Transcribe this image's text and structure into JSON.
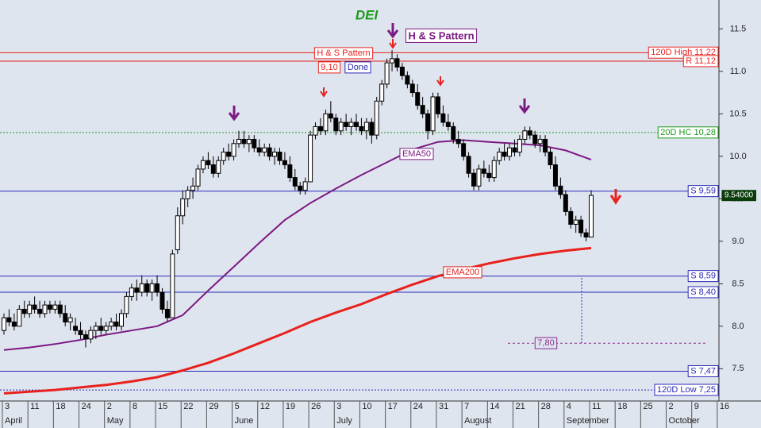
{
  "chart_data": {
    "type": "candlestick",
    "title": "DEI",
    "ylim": [
      7.12,
      11.84
    ],
    "yticks": [
      7.5,
      {
        "value": 8,
        "label": "8.0"
      },
      8.5,
      {
        "value": 9,
        "label": "9.0"
      },
      9.5,
      {
        "value": 10,
        "label": "10.0"
      },
      10.5,
      {
        "value": 11,
        "label": "11.0"
      },
      11.5
    ],
    "xtick_labels": [
      "3",
      "11",
      "18",
      "24",
      "2",
      "8",
      "15",
      "22",
      "29",
      "5",
      "12",
      "19",
      "26",
      "3",
      "10",
      "17",
      "24",
      "31",
      "7",
      "14",
      "21",
      "28",
      "4",
      "11",
      "18",
      "25",
      "2",
      "9",
      "16"
    ],
    "months": [
      "April",
      "May",
      "June",
      "July",
      "August",
      "September",
      "October"
    ],
    "candles": [
      [
        7.95,
        8.15,
        7.9,
        8.1
      ],
      [
        8.1,
        8.2,
        8.0,
        8.05
      ],
      [
        8.05,
        8.15,
        7.95,
        8.0
      ],
      [
        8.0,
        8.25,
        8.0,
        8.2
      ],
      [
        8.2,
        8.3,
        8.1,
        8.15
      ],
      [
        8.15,
        8.3,
        8.1,
        8.25
      ],
      [
        8.25,
        8.35,
        8.15,
        8.2
      ],
      [
        8.2,
        8.3,
        8.1,
        8.15
      ],
      [
        8.15,
        8.3,
        8.1,
        8.25
      ],
      [
        8.25,
        8.3,
        8.15,
        8.2
      ],
      [
        8.2,
        8.3,
        8.15,
        8.25
      ],
      [
        8.25,
        8.3,
        8.1,
        8.15
      ],
      [
        8.15,
        8.25,
        8.0,
        8.05
      ],
      [
        8.05,
        8.15,
        7.95,
        8.1
      ],
      [
        8.0,
        8.1,
        7.9,
        7.95
      ],
      [
        7.95,
        8.05,
        7.85,
        7.9
      ],
      [
        7.9,
        7.95,
        7.75,
        7.85
      ],
      [
        7.85,
        8.0,
        7.8,
        7.95
      ],
      [
        7.95,
        8.05,
        7.85,
        8.0
      ],
      [
        8.0,
        8.1,
        7.9,
        7.95
      ],
      [
        7.95,
        8.05,
        7.9,
        8.0
      ],
      [
        8.0,
        8.1,
        7.95,
        8.05
      ],
      [
        8.05,
        8.15,
        7.95,
        8.0
      ],
      [
        8.0,
        8.2,
        7.95,
        8.15
      ],
      [
        8.15,
        8.4,
        8.1,
        8.35
      ],
      [
        8.35,
        8.5,
        8.3,
        8.45
      ],
      [
        8.45,
        8.55,
        8.3,
        8.4
      ],
      [
        8.4,
        8.6,
        8.35,
        8.5
      ],
      [
        8.5,
        8.55,
        8.35,
        8.4
      ],
      [
        8.4,
        8.55,
        8.3,
        8.5
      ],
      [
        8.5,
        8.6,
        8.35,
        8.4
      ],
      [
        8.4,
        8.45,
        8.15,
        8.2
      ],
      [
        8.2,
        8.3,
        8.05,
        8.1
      ],
      [
        8.1,
        8.9,
        8.1,
        8.85
      ],
      [
        8.9,
        9.4,
        8.85,
        9.3
      ],
      [
        9.3,
        9.6,
        9.2,
        9.5
      ],
      [
        9.5,
        9.65,
        9.4,
        9.6
      ],
      [
        9.6,
        9.75,
        9.5,
        9.65
      ],
      [
        9.65,
        9.9,
        9.6,
        9.85
      ],
      [
        9.85,
        10.0,
        9.8,
        9.95
      ],
      [
        9.95,
        10.05,
        9.85,
        9.9
      ],
      [
        9.9,
        10.0,
        9.75,
        9.8
      ],
      [
        9.8,
        10.0,
        9.75,
        9.95
      ],
      [
        9.95,
        10.1,
        9.9,
        10.05
      ],
      [
        10.05,
        10.15,
        9.95,
        10.0
      ],
      [
        10.0,
        10.2,
        9.95,
        10.15
      ],
      [
        10.15,
        10.3,
        10.1,
        10.2
      ],
      [
        10.2,
        10.3,
        10.1,
        10.15
      ],
      [
        10.15,
        10.25,
        10.05,
        10.2
      ],
      [
        10.2,
        10.25,
        10.05,
        10.1
      ],
      [
        10.1,
        10.2,
        10.0,
        10.05
      ],
      [
        10.05,
        10.15,
        10.0,
        10.1
      ],
      [
        10.1,
        10.15,
        9.95,
        10.0
      ],
      [
        10.0,
        10.1,
        9.9,
        10.05
      ],
      [
        10.05,
        10.1,
        9.9,
        9.95
      ],
      [
        9.95,
        10.05,
        9.85,
        9.9
      ],
      [
        9.9,
        10.0,
        9.7,
        9.75
      ],
      [
        9.75,
        9.85,
        9.6,
        9.65
      ],
      [
        9.65,
        9.7,
        9.55,
        9.6
      ],
      [
        9.6,
        9.75,
        9.55,
        9.7
      ],
      [
        9.7,
        10.3,
        9.7,
        10.25
      ],
      [
        10.25,
        10.4,
        10.2,
        10.35
      ],
      [
        10.35,
        10.45,
        10.25,
        10.3
      ],
      [
        10.3,
        10.55,
        10.25,
        10.5
      ],
      [
        10.5,
        10.65,
        10.4,
        10.45
      ],
      [
        10.45,
        10.5,
        10.25,
        10.3
      ],
      [
        10.3,
        10.45,
        10.25,
        10.4
      ],
      [
        10.4,
        10.5,
        10.3,
        10.35
      ],
      [
        10.35,
        10.45,
        10.25,
        10.4
      ],
      [
        10.4,
        10.5,
        10.3,
        10.35
      ],
      [
        10.35,
        10.45,
        10.25,
        10.3
      ],
      [
        10.3,
        10.45,
        10.2,
        10.4
      ],
      [
        10.4,
        10.45,
        10.15,
        10.25
      ],
      [
        10.25,
        10.7,
        10.2,
        10.65
      ],
      [
        10.65,
        10.9,
        10.6,
        10.85
      ],
      [
        10.85,
        11.15,
        10.8,
        11.1
      ],
      [
        11.1,
        11.25,
        11.0,
        11.15
      ],
      [
        11.15,
        11.2,
        11.0,
        11.05
      ],
      [
        11.05,
        11.1,
        10.9,
        10.95
      ],
      [
        10.95,
        11.0,
        10.8,
        10.85
      ],
      [
        10.85,
        10.9,
        10.7,
        10.75
      ],
      [
        10.75,
        10.85,
        10.55,
        10.6
      ],
      [
        10.6,
        10.7,
        10.45,
        10.5
      ],
      [
        10.5,
        10.55,
        10.2,
        10.3
      ],
      [
        10.3,
        10.75,
        10.25,
        10.7
      ],
      [
        10.7,
        10.75,
        10.45,
        10.5
      ],
      [
        10.5,
        10.6,
        10.35,
        10.4
      ],
      [
        10.4,
        10.5,
        10.3,
        10.35
      ],
      [
        10.35,
        10.4,
        10.15,
        10.2
      ],
      [
        10.2,
        10.3,
        10.1,
        10.15
      ],
      [
        10.15,
        10.2,
        9.95,
        10.0
      ],
      [
        10.0,
        10.05,
        9.75,
        9.8
      ],
      [
        9.8,
        9.85,
        9.6,
        9.65
      ],
      [
        9.65,
        9.9,
        9.6,
        9.85
      ],
      [
        9.85,
        9.95,
        9.75,
        9.8
      ],
      [
        9.8,
        9.9,
        9.7,
        9.75
      ],
      [
        9.75,
        10.0,
        9.7,
        9.95
      ],
      [
        9.95,
        10.1,
        9.9,
        10.05
      ],
      [
        10.05,
        10.15,
        9.95,
        10.0
      ],
      [
        10.0,
        10.15,
        9.95,
        10.1
      ],
      [
        10.1,
        10.2,
        10.0,
        10.05
      ],
      [
        10.05,
        10.25,
        10.0,
        10.2
      ],
      [
        10.2,
        10.35,
        10.15,
        10.3
      ],
      [
        10.3,
        10.35,
        10.2,
        10.25
      ],
      [
        10.25,
        10.3,
        10.1,
        10.15
      ],
      [
        10.15,
        10.25,
        10.05,
        10.2
      ],
      [
        10.2,
        10.25,
        10.0,
        10.05
      ],
      [
        10.05,
        10.1,
        9.85,
        9.9
      ],
      [
        9.9,
        10.0,
        9.6,
        9.65
      ],
      [
        9.65,
        9.75,
        9.5,
        9.55
      ],
      [
        9.55,
        9.6,
        9.3,
        9.35
      ],
      [
        9.35,
        9.4,
        9.15,
        9.2
      ],
      [
        9.2,
        9.3,
        9.1,
        9.25
      ],
      [
        9.25,
        9.3,
        9.05,
        9.1
      ],
      [
        9.1,
        9.15,
        9.0,
        9.05
      ],
      [
        9.05,
        9.6,
        9.05,
        9.54
      ]
    ],
    "series": [
      {
        "name": "EMA200",
        "color": "#e8211c",
        "values": [
          7.21,
          7.23,
          7.25,
          7.28,
          7.31,
          7.35,
          7.4,
          7.48,
          7.57,
          7.68,
          7.8,
          7.92,
          8.05,
          8.16,
          8.26,
          8.38,
          8.49,
          8.59,
          8.67,
          8.74,
          8.8,
          8.85,
          8.89,
          8.92
        ]
      },
      {
        "name": "EMA50",
        "color": "#7b1a82",
        "values": [
          7.72,
          7.75,
          7.79,
          7.84,
          7.9,
          7.95,
          8.0,
          8.13,
          8.42,
          8.7,
          8.98,
          9.25,
          9.45,
          9.62,
          9.78,
          9.93,
          10.08,
          10.17,
          10.19,
          10.17,
          10.15,
          10.13,
          10.07,
          9.96
        ]
      }
    ],
    "levels": [
      {
        "value": 11.22,
        "label": "120D High 11,22",
        "color": "#e8211c",
        "style": "solid"
      },
      {
        "value": 11.12,
        "label": "R 11,12",
        "color": "#e8211c",
        "style": "solid"
      },
      {
        "value": 10.28,
        "label": "20D HC 10,28",
        "color": "#1c9a1c",
        "style": "dotted"
      },
      {
        "value": 9.59,
        "label": "S 9,59",
        "color": "#2a2ab8",
        "style": "solid"
      },
      {
        "value": 8.59,
        "label": "S 8,59",
        "color": "#2a2ab8",
        "style": "solid"
      },
      {
        "value": 8.4,
        "label": "S 8,40",
        "color": "#2a2ab8",
        "style": "solid"
      },
      {
        "value": 7.47,
        "label": "S 7,47",
        "color": "#2a2ab8",
        "style": "solid"
      },
      {
        "value": 7.25,
        "label": "120D Low 7,25",
        "color": "#2a2ab8",
        "style": "dotted"
      }
    ],
    "target": {
      "value": 7.8,
      "label": "7,80",
      "color": "#8a2a8a"
    },
    "last_price": {
      "value": 9.54,
      "label": "9.54000"
    },
    "annotations": [
      {
        "text": "H & S Pattern",
        "color": "#e8211c"
      },
      {
        "text": "9,10",
        "color": "#e8211c"
      },
      {
        "text": "Done",
        "color": "#2a2ab8"
      },
      {
        "text": "H & S Pattern",
        "color": "#7b1a82"
      },
      {
        "text": "EMA50",
        "color": "#7b1a82"
      },
      {
        "text": "EMA200",
        "color": "#e8211c"
      }
    ]
  }
}
